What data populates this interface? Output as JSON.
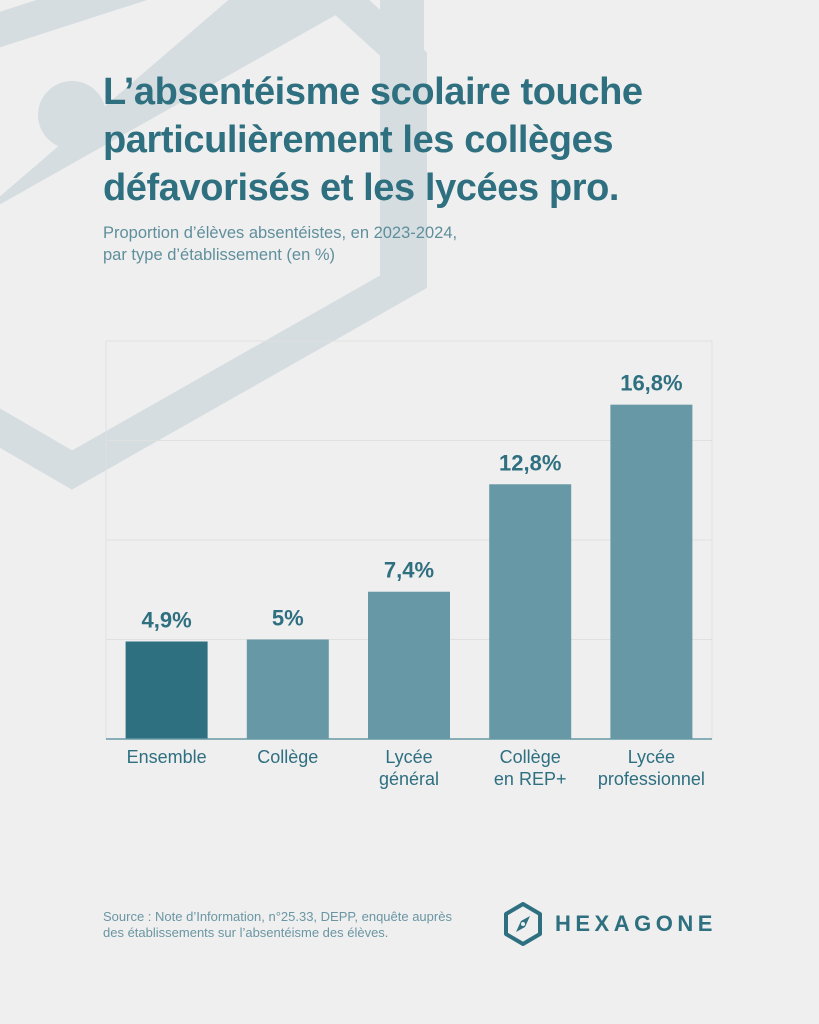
{
  "title": "L’absentéisme scolaire touche particulièrement les collèges défavorisés et les lycées pro.",
  "subtitle_lines": [
    "Proportion d’élèves absentéistes, en 2023-2024,",
    "par type d’établissement (en %)"
  ],
  "chart_data": {
    "type": "bar",
    "categories": [
      [
        "Ensemble"
      ],
      [
        "Collège"
      ],
      [
        "Lycée",
        "général"
      ],
      [
        "Collège",
        "en REP+"
      ],
      [
        "Lycée",
        "professionnel"
      ]
    ],
    "values": [
      4.9,
      5,
      7.4,
      12.8,
      16.8
    ],
    "value_labels": [
      "4,9%",
      "5%",
      "7,4%",
      "12,8%",
      "16,8%"
    ],
    "ylim": [
      0,
      20
    ],
    "grid": true,
    "highlight_index": 0,
    "colors": {
      "highlight": "#2e6f80",
      "bar": "#6698a5",
      "label": "#2e6f80",
      "grid": "#e0e0e0",
      "axis": "#6698a5"
    }
  },
  "source_lines": [
    "Source : Note d’Information, n°25.33, DEPP, enquête auprès",
    "des établissements sur l’absentéisme des élèves."
  ],
  "logo": {
    "text": "HEXAGONE",
    "icon": "hexagon-compass-icon"
  }
}
